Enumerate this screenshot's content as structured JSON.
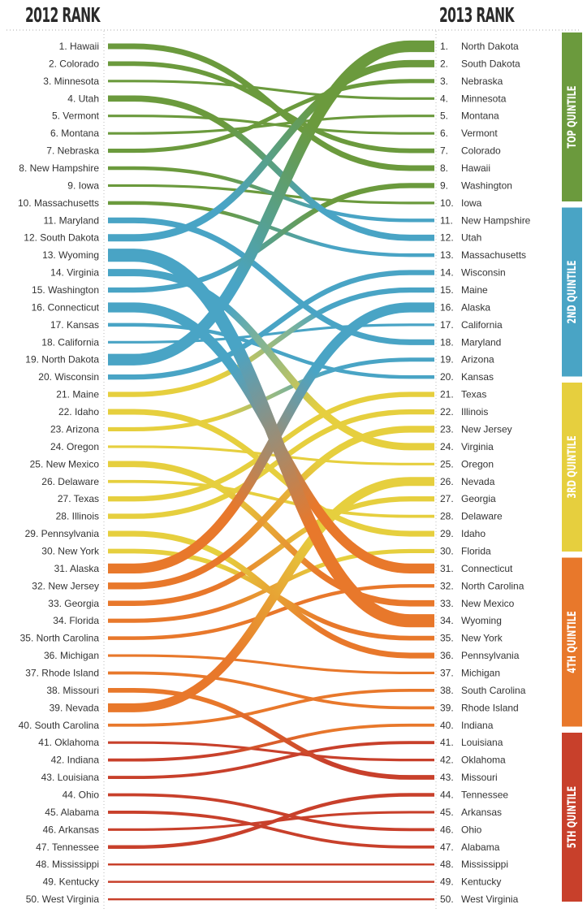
{
  "chart_data": {
    "type": "slope",
    "left_header": "2012 RANK",
    "right_header": "2013 RANK",
    "rank_2012": [
      {
        "rank": 1,
        "state": "Hawaii"
      },
      {
        "rank": 2,
        "state": "Colorado"
      },
      {
        "rank": 3,
        "state": "Minnesota"
      },
      {
        "rank": 4,
        "state": "Utah"
      },
      {
        "rank": 5,
        "state": "Vermont"
      },
      {
        "rank": 6,
        "state": "Montana"
      },
      {
        "rank": 7,
        "state": "Nebraska"
      },
      {
        "rank": 8,
        "state": "New Hampshire"
      },
      {
        "rank": 9,
        "state": "Iowa"
      },
      {
        "rank": 10,
        "state": "Massachusetts"
      },
      {
        "rank": 11,
        "state": "Maryland"
      },
      {
        "rank": 12,
        "state": "South Dakota"
      },
      {
        "rank": 13,
        "state": "Wyoming"
      },
      {
        "rank": 14,
        "state": "Virginia"
      },
      {
        "rank": 15,
        "state": "Washington"
      },
      {
        "rank": 16,
        "state": "Connecticut"
      },
      {
        "rank": 17,
        "state": "Kansas"
      },
      {
        "rank": 18,
        "state": "California"
      },
      {
        "rank": 19,
        "state": "North Dakota"
      },
      {
        "rank": 20,
        "state": "Wisconsin"
      },
      {
        "rank": 21,
        "state": "Maine"
      },
      {
        "rank": 22,
        "state": "Idaho"
      },
      {
        "rank": 23,
        "state": "Arizona"
      },
      {
        "rank": 24,
        "state": "Oregon"
      },
      {
        "rank": 25,
        "state": "New Mexico"
      },
      {
        "rank": 26,
        "state": "Delaware"
      },
      {
        "rank": 27,
        "state": "Texas"
      },
      {
        "rank": 28,
        "state": "Illinois"
      },
      {
        "rank": 29,
        "state": "Pennsylvania"
      },
      {
        "rank": 30,
        "state": "New York"
      },
      {
        "rank": 31,
        "state": "Alaska"
      },
      {
        "rank": 32,
        "state": "New Jersey"
      },
      {
        "rank": 33,
        "state": "Georgia"
      },
      {
        "rank": 34,
        "state": "Florida"
      },
      {
        "rank": 35,
        "state": "North Carolina"
      },
      {
        "rank": 36,
        "state": "Michigan"
      },
      {
        "rank": 37,
        "state": "Rhode Island"
      },
      {
        "rank": 38,
        "state": "Missouri"
      },
      {
        "rank": 39,
        "state": "Nevada"
      },
      {
        "rank": 40,
        "state": "South Carolina"
      },
      {
        "rank": 41,
        "state": "Oklahoma"
      },
      {
        "rank": 42,
        "state": "Indiana"
      },
      {
        "rank": 43,
        "state": "Louisiana"
      },
      {
        "rank": 44,
        "state": "Ohio"
      },
      {
        "rank": 45,
        "state": "Alabama"
      },
      {
        "rank": 46,
        "state": "Arkansas"
      },
      {
        "rank": 47,
        "state": "Tennessee"
      },
      {
        "rank": 48,
        "state": "Mississippi"
      },
      {
        "rank": 49,
        "state": "Kentucky"
      },
      {
        "rank": 50,
        "state": "West Virginia"
      }
    ],
    "rank_2013": [
      {
        "rank": 1,
        "state": "North Dakota"
      },
      {
        "rank": 2,
        "state": "South Dakota"
      },
      {
        "rank": 3,
        "state": "Nebraska"
      },
      {
        "rank": 4,
        "state": "Minnesota"
      },
      {
        "rank": 5,
        "state": "Montana"
      },
      {
        "rank": 6,
        "state": "Vermont"
      },
      {
        "rank": 7,
        "state": "Colorado"
      },
      {
        "rank": 8,
        "state": "Hawaii"
      },
      {
        "rank": 9,
        "state": "Washington"
      },
      {
        "rank": 10,
        "state": "Iowa"
      },
      {
        "rank": 11,
        "state": "New Hampshire"
      },
      {
        "rank": 12,
        "state": "Utah"
      },
      {
        "rank": 13,
        "state": "Massachusetts"
      },
      {
        "rank": 14,
        "state": "Wisconsin"
      },
      {
        "rank": 15,
        "state": "Maine"
      },
      {
        "rank": 16,
        "state": "Alaska"
      },
      {
        "rank": 17,
        "state": "California"
      },
      {
        "rank": 18,
        "state": "Maryland"
      },
      {
        "rank": 19,
        "state": "Arizona"
      },
      {
        "rank": 20,
        "state": "Kansas"
      },
      {
        "rank": 21,
        "state": "Texas"
      },
      {
        "rank": 22,
        "state": "Illinois"
      },
      {
        "rank": 23,
        "state": "New Jersey"
      },
      {
        "rank": 24,
        "state": "Virginia"
      },
      {
        "rank": 25,
        "state": "Oregon"
      },
      {
        "rank": 26,
        "state": "Nevada"
      },
      {
        "rank": 27,
        "state": "Georgia"
      },
      {
        "rank": 28,
        "state": "Delaware"
      },
      {
        "rank": 29,
        "state": "Idaho"
      },
      {
        "rank": 30,
        "state": "Florida"
      },
      {
        "rank": 31,
        "state": "Connecticut"
      },
      {
        "rank": 32,
        "state": "North Carolina"
      },
      {
        "rank": 33,
        "state": "New Mexico"
      },
      {
        "rank": 34,
        "state": "Wyoming"
      },
      {
        "rank": 35,
        "state": "New York"
      },
      {
        "rank": 36,
        "state": "Pennsylvania"
      },
      {
        "rank": 37,
        "state": "Michigan"
      },
      {
        "rank": 38,
        "state": "South Carolina"
      },
      {
        "rank": 39,
        "state": "Rhode Island"
      },
      {
        "rank": 40,
        "state": "Indiana"
      },
      {
        "rank": 41,
        "state": "Louisiana"
      },
      {
        "rank": 42,
        "state": "Oklahoma"
      },
      {
        "rank": 43,
        "state": "Missouri"
      },
      {
        "rank": 44,
        "state": "Tennessee"
      },
      {
        "rank": 45,
        "state": "Arkansas"
      },
      {
        "rank": 46,
        "state": "Ohio"
      },
      {
        "rank": 47,
        "state": "Alabama"
      },
      {
        "rank": 48,
        "state": "Mississippi"
      },
      {
        "rank": 49,
        "state": "Kentucky"
      },
      {
        "rank": 50,
        "state": "West Virginia"
      }
    ],
    "quintiles": [
      {
        "label": "TOP QUINTILE",
        "color": "#6b9a3d"
      },
      {
        "label": "2ND QUINTILE",
        "color": "#49a4c5"
      },
      {
        "label": "3RD QUINTILE",
        "color": "#e6cf3e"
      },
      {
        "label": "4TH QUINTILE",
        "color": "#e8782b"
      },
      {
        "label": "5TH QUINTILE",
        "color": "#c8402b"
      }
    ]
  }
}
